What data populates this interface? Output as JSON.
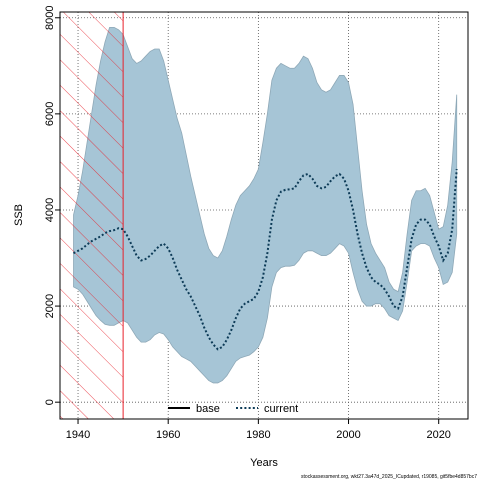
{
  "chart_data": {
    "type": "area",
    "xlabel": "Years",
    "ylabel": "SSB",
    "xlim": [
      1936,
      2026.5
    ],
    "ylim": [
      -350,
      8120
    ],
    "x_ticks": [
      1940,
      1960,
      1980,
      2000,
      2020
    ],
    "y_ticks": [
      0,
      2000,
      4000,
      6000,
      8000
    ],
    "grid": true,
    "hatched_region": {
      "from": 1936,
      "to": 1950,
      "color": "#e8202a"
    },
    "legend": {
      "placement": "bottom-center",
      "entries": [
        {
          "label": "base",
          "style": "solid",
          "color": "#000000"
        },
        {
          "label": "current",
          "style": "dotted",
          "color": "#0d3b57"
        }
      ]
    },
    "series": [
      {
        "name": "current",
        "x": [
          1939,
          1940,
          1941,
          1942,
          1943,
          1944,
          1945,
          1946,
          1947,
          1948,
          1949,
          1950,
          1951,
          1952,
          1953,
          1954,
          1955,
          1956,
          1957,
          1958,
          1959,
          1960,
          1961,
          1962,
          1963,
          1964,
          1965,
          1966,
          1967,
          1968,
          1969,
          1970,
          1971,
          1972,
          1973,
          1974,
          1975,
          1976,
          1977,
          1978,
          1979,
          1980,
          1981,
          1982,
          1983,
          1984,
          1985,
          1986,
          1987,
          1988,
          1989,
          1990,
          1991,
          1992,
          1993,
          1994,
          1995,
          1996,
          1997,
          1998,
          1999,
          2000,
          2001,
          2002,
          2003,
          2004,
          2005,
          2006,
          2007,
          2008,
          2009,
          2010,
          2011,
          2012,
          2013,
          2014,
          2015,
          2016,
          2017,
          2018,
          2019,
          2020,
          2021,
          2022,
          2023,
          2024
        ],
        "values": [
          3100,
          3150,
          3200,
          3280,
          3350,
          3400,
          3450,
          3520,
          3560,
          3580,
          3620,
          3600,
          3450,
          3250,
          3050,
          2950,
          2980,
          3050,
          3150,
          3250,
          3300,
          3200,
          3000,
          2750,
          2550,
          2350,
          2200,
          2000,
          1800,
          1550,
          1350,
          1200,
          1100,
          1150,
          1300,
          1500,
          1750,
          1950,
          2050,
          2100,
          2150,
          2300,
          2600,
          3100,
          3800,
          4200,
          4380,
          4420,
          4430,
          4450,
          4600,
          4720,
          4750,
          4650,
          4500,
          4450,
          4480,
          4600,
          4700,
          4750,
          4650,
          4400,
          4000,
          3500,
          3100,
          2800,
          2600,
          2500,
          2450,
          2350,
          2200,
          2000,
          1950,
          2200,
          2800,
          3400,
          3700,
          3800,
          3800,
          3700,
          3450,
          3250,
          2950,
          3100,
          3600,
          4850
        ]
      }
    ],
    "confidence_band": {
      "x": [
        1939,
        1940,
        1941,
        1942,
        1943,
        1944,
        1945,
        1946,
        1947,
        1948,
        1949,
        1950,
        1951,
        1952,
        1953,
        1954,
        1955,
        1956,
        1957,
        1958,
        1959,
        1960,
        1961,
        1962,
        1963,
        1964,
        1965,
        1966,
        1967,
        1968,
        1969,
        1970,
        1971,
        1972,
        1973,
        1974,
        1975,
        1976,
        1977,
        1978,
        1979,
        1980,
        1981,
        1982,
        1983,
        1984,
        1985,
        1986,
        1987,
        1988,
        1989,
        1990,
        1991,
        1992,
        1993,
        1994,
        1995,
        1996,
        1997,
        1998,
        1999,
        2000,
        2001,
        2002,
        2003,
        2004,
        2005,
        2006,
        2007,
        2008,
        2009,
        2010,
        2011,
        2012,
        2013,
        2014,
        2015,
        2016,
        2017,
        2018,
        2019,
        2020,
        2021,
        2022,
        2023,
        2024
      ],
      "upper": [
        3900,
        4300,
        4800,
        5400,
        6000,
        6600,
        7100,
        7500,
        7800,
        7800,
        7750,
        7650,
        7400,
        7150,
        7050,
        7100,
        7200,
        7300,
        7350,
        7350,
        7100,
        6700,
        6300,
        5900,
        5600,
        5150,
        4700,
        4300,
        3900,
        3500,
        3200,
        3050,
        3000,
        3150,
        3450,
        3800,
        4100,
        4300,
        4400,
        4500,
        4650,
        4850,
        5400,
        6000,
        6700,
        6950,
        7050,
        7000,
        6950,
        6950,
        7050,
        7200,
        7150,
        6950,
        6650,
        6500,
        6450,
        6500,
        6650,
        6800,
        6800,
        6650,
        6200,
        5300,
        4400,
        3700,
        3300,
        3100,
        2950,
        2800,
        2500,
        2350,
        2300,
        2700,
        3500,
        4200,
        4400,
        4400,
        4450,
        4300,
        3950,
        3600,
        3650,
        4100,
        5000,
        6400
      ],
      "lower": [
        2400,
        2350,
        2250,
        2100,
        1950,
        1800,
        1700,
        1620,
        1600,
        1600,
        1650,
        1700,
        1650,
        1500,
        1350,
        1250,
        1250,
        1300,
        1400,
        1450,
        1420,
        1300,
        1150,
        1050,
        950,
        900,
        850,
        750,
        650,
        550,
        450,
        400,
        400,
        450,
        550,
        700,
        850,
        920,
        950,
        980,
        1050,
        1150,
        1350,
        1750,
        2400,
        2700,
        2800,
        2830,
        2830,
        2850,
        2950,
        3100,
        3150,
        3150,
        3100,
        3050,
        3050,
        3100,
        3200,
        3300,
        3250,
        3100,
        2700,
        2350,
        2100,
        2000,
        2000,
        2050,
        2050,
        1950,
        1800,
        1750,
        1700,
        1900,
        2500,
        3150,
        3250,
        3300,
        3300,
        3250,
        3000,
        2800,
        2450,
        2500,
        2700,
        3500
      ]
    }
  },
  "footer": {
    "caption": "stockassessment.org, wkt27.3a47d_2025_ICupdated, r19085, git5fbe4d857bc7"
  }
}
